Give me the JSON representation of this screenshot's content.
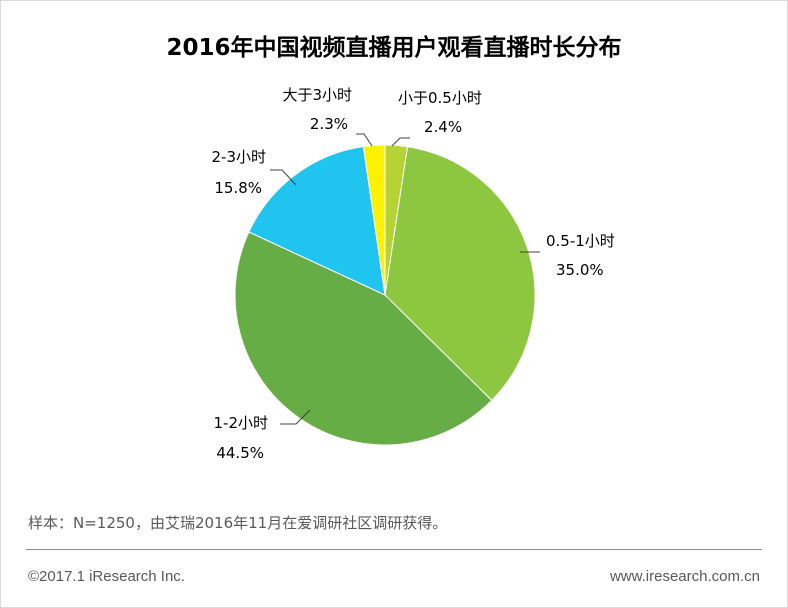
{
  "chart_data": {
    "type": "pie",
    "title": "2016年中国视频直播用户观看直播时长分布",
    "slices": [
      {
        "label": "小于0.5小时",
        "value": 2.4,
        "value_label": "2.4%",
        "color": "#b5d334"
      },
      {
        "label": "0.5-1小时",
        "value": 35.0,
        "value_label": "35.0%",
        "color": "#8dc63f"
      },
      {
        "label": "1-2小时",
        "value": 44.5,
        "value_label": "44.5%",
        "color": "#66ad45"
      },
      {
        "label": "2-3小时",
        "value": 15.8,
        "value_label": "15.8%",
        "color": "#1fc4ef"
      },
      {
        "label": "大于3小时",
        "value": 2.3,
        "value_label": "2.3%",
        "color": "#fff200"
      }
    ]
  },
  "footer": {
    "note": "样本：N=1250，由艾瑞2016年11月在爱调研社区调研获得。",
    "copyright": "©2017.1 iResearch Inc.",
    "website": "www.iresearch.com.cn"
  }
}
